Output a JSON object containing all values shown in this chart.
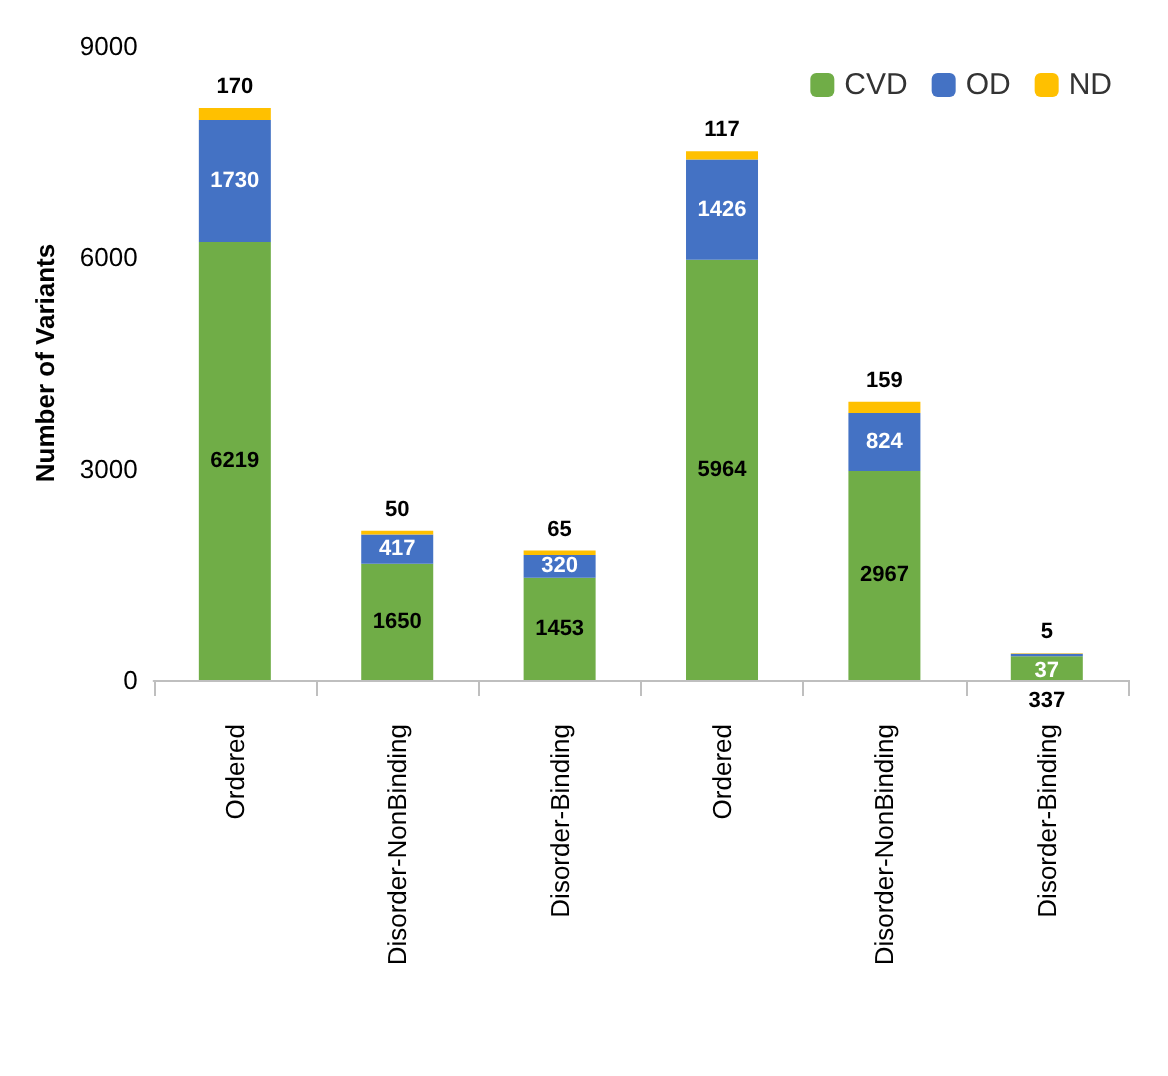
{
  "chart_data": {
    "type": "bar",
    "stacked": true,
    "ylabel": "Number of Variants",
    "categories": [
      "Ordered",
      "Disorder-NonBinding",
      "Disorder-Binding",
      "Ordered",
      "Disorder-NonBinding",
      "Disorder-Binding"
    ],
    "series": [
      {
        "name": "CVD",
        "color": "#70ad47",
        "values": [
          6219,
          1650,
          1453,
          5964,
          2967,
          337
        ]
      },
      {
        "name": "OD",
        "color": "#4472c4",
        "values": [
          1730,
          417,
          320,
          1426,
          824,
          37
        ]
      },
      {
        "name": "ND",
        "color": "#ffc000",
        "values": [
          170,
          50,
          65,
          117,
          159,
          5
        ]
      }
    ],
    "ylim": [
      0,
      9000
    ],
    "yticks": [
      0,
      3000,
      6000,
      9000
    ],
    "grid": false,
    "legend": "top right",
    "data_labels": true
  }
}
